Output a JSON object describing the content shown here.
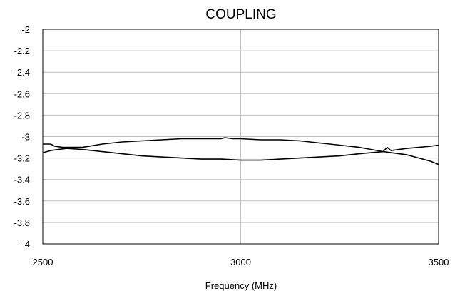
{
  "chart_data": {
    "type": "line",
    "title": "COUPLING",
    "xlabel": "Frequency (MHz)",
    "ylabel": "",
    "xlim": [
      2500,
      3500
    ],
    "ylim": [
      -4,
      -2
    ],
    "xticks": [
      "2500",
      "3000",
      "3500"
    ],
    "yticks": [
      "-2",
      "-2.2",
      "-2.4",
      "-2.6",
      "-2.8",
      "-3",
      "-3.2",
      "-3.4",
      "-3.6",
      "-3.8",
      "-4"
    ],
    "grid": true,
    "legend": "none",
    "line_color": "#000000",
    "grid_color": "#c0c0c0",
    "series": [
      {
        "x": [
          2500,
          2520,
          2530,
          2550,
          2600,
          2650,
          2700,
          2750,
          2800,
          2850,
          2900,
          2950,
          2960,
          2980,
          3000,
          3050,
          3100,
          3150,
          3200,
          3250,
          3300,
          3330,
          3360,
          3380,
          3400,
          3420,
          3450,
          3480,
          3500
        ],
        "y": [
          -3.07,
          -3.07,
          -3.09,
          -3.1,
          -3.1,
          -3.07,
          -3.05,
          -3.04,
          -3.03,
          -3.02,
          -3.02,
          -3.02,
          -3.01,
          -3.02,
          -3.02,
          -3.03,
          -3.03,
          -3.04,
          -3.06,
          -3.08,
          -3.1,
          -3.12,
          -3.14,
          -3.15,
          -3.16,
          -3.17,
          -3.2,
          -3.23,
          -3.26
        ]
      },
      {
        "x": [
          2500,
          2520,
          2540,
          2560,
          2600,
          2650,
          2700,
          2750,
          2800,
          2850,
          2900,
          2950,
          3000,
          3050,
          3100,
          3150,
          3200,
          3250,
          3300,
          3330,
          3360,
          3370,
          3380,
          3400,
          3420,
          3450,
          3480,
          3500
        ],
        "y": [
          -3.15,
          -3.13,
          -3.12,
          -3.11,
          -3.12,
          -3.14,
          -3.16,
          -3.18,
          -3.19,
          -3.2,
          -3.21,
          -3.21,
          -3.22,
          -3.22,
          -3.21,
          -3.2,
          -3.19,
          -3.18,
          -3.16,
          -3.15,
          -3.14,
          -3.1,
          -3.13,
          -3.12,
          -3.11,
          -3.1,
          -3.09,
          -3.08
        ]
      }
    ]
  }
}
